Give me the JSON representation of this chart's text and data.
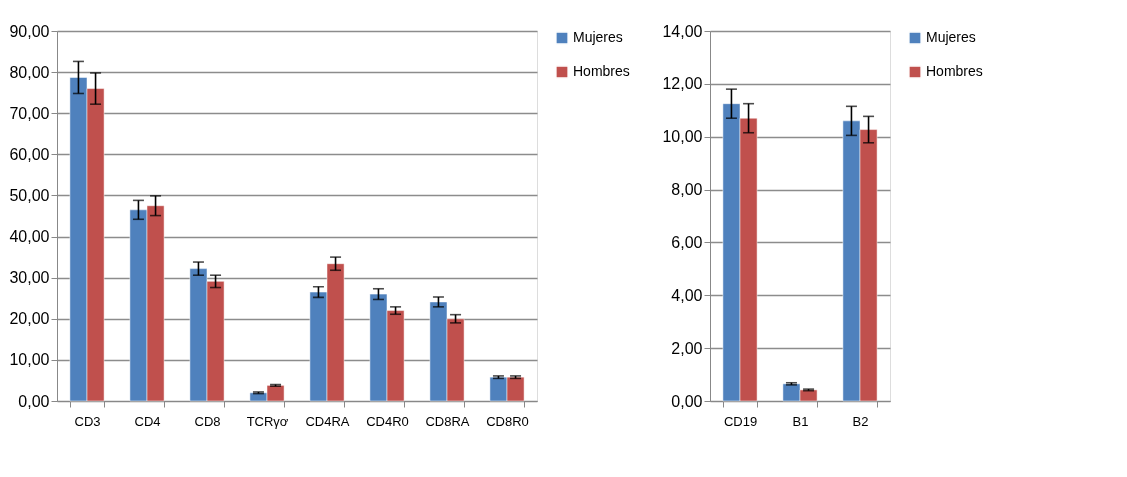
{
  "chart_data": [
    {
      "type": "bar",
      "categories": [
        "CD3",
        "CD4",
        "CD8",
        "TCRγơ",
        "CD4RA",
        "CD4R0",
        "CD8RA",
        "CD8R0"
      ],
      "series": [
        {
          "name": "Mujeres",
          "color": "#4f81bd",
          "values": [
            78.7,
            46.5,
            32.2,
            2.0,
            26.5,
            26.0,
            24.1,
            5.8
          ],
          "errors": [
            3.9,
            2.3,
            1.6,
            0.2,
            1.3,
            1.3,
            1.2,
            0.3
          ]
        },
        {
          "name": "Hombres",
          "color": "#c0504d",
          "values": [
            76.0,
            47.5,
            29.1,
            3.8,
            33.4,
            22.0,
            20.0,
            5.8
          ],
          "errors": [
            3.8,
            2.4,
            1.5,
            0.2,
            1.6,
            0.9,
            1.0,
            0.3
          ]
        }
      ],
      "ylim": [
        0,
        90
      ],
      "yticks": [
        {
          "value": 0,
          "label": "0,00"
        },
        {
          "value": 10,
          "label": "10,00"
        },
        {
          "value": 20,
          "label": "20,00"
        },
        {
          "value": 30,
          "label": "30,00"
        },
        {
          "value": 40,
          "label": "40,00"
        },
        {
          "value": 50,
          "label": "50,00"
        },
        {
          "value": 60,
          "label": "60,00"
        },
        {
          "value": 70,
          "label": "70,00"
        },
        {
          "value": 80,
          "label": "80,00"
        },
        {
          "value": 90,
          "label": "90,00"
        }
      ],
      "grid": "y",
      "legend": "right"
    },
    {
      "type": "bar",
      "categories": [
        "CD19",
        "B1",
        "B2"
      ],
      "series": [
        {
          "name": "Mujeres",
          "color": "#4f81bd",
          "values": [
            11.25,
            0.65,
            10.6
          ],
          "errors": [
            0.55,
            0.04,
            0.55
          ]
        },
        {
          "name": "Hombres",
          "color": "#c0504d",
          "values": [
            10.7,
            0.42,
            10.27
          ],
          "errors": [
            0.55,
            0.03,
            0.5
          ]
        }
      ],
      "ylim": [
        0,
        14
      ],
      "yticks": [
        {
          "value": 0,
          "label": "0,00"
        },
        {
          "value": 2,
          "label": "2,00"
        },
        {
          "value": 4,
          "label": "4,00"
        },
        {
          "value": 6,
          "label": "6,00"
        },
        {
          "value": 8,
          "label": "8,00"
        },
        {
          "value": 10,
          "label": "10,00"
        },
        {
          "value": 12,
          "label": "12,00"
        },
        {
          "value": 14,
          "label": "14,00"
        }
      ],
      "grid": "y",
      "legend": "right"
    }
  ]
}
